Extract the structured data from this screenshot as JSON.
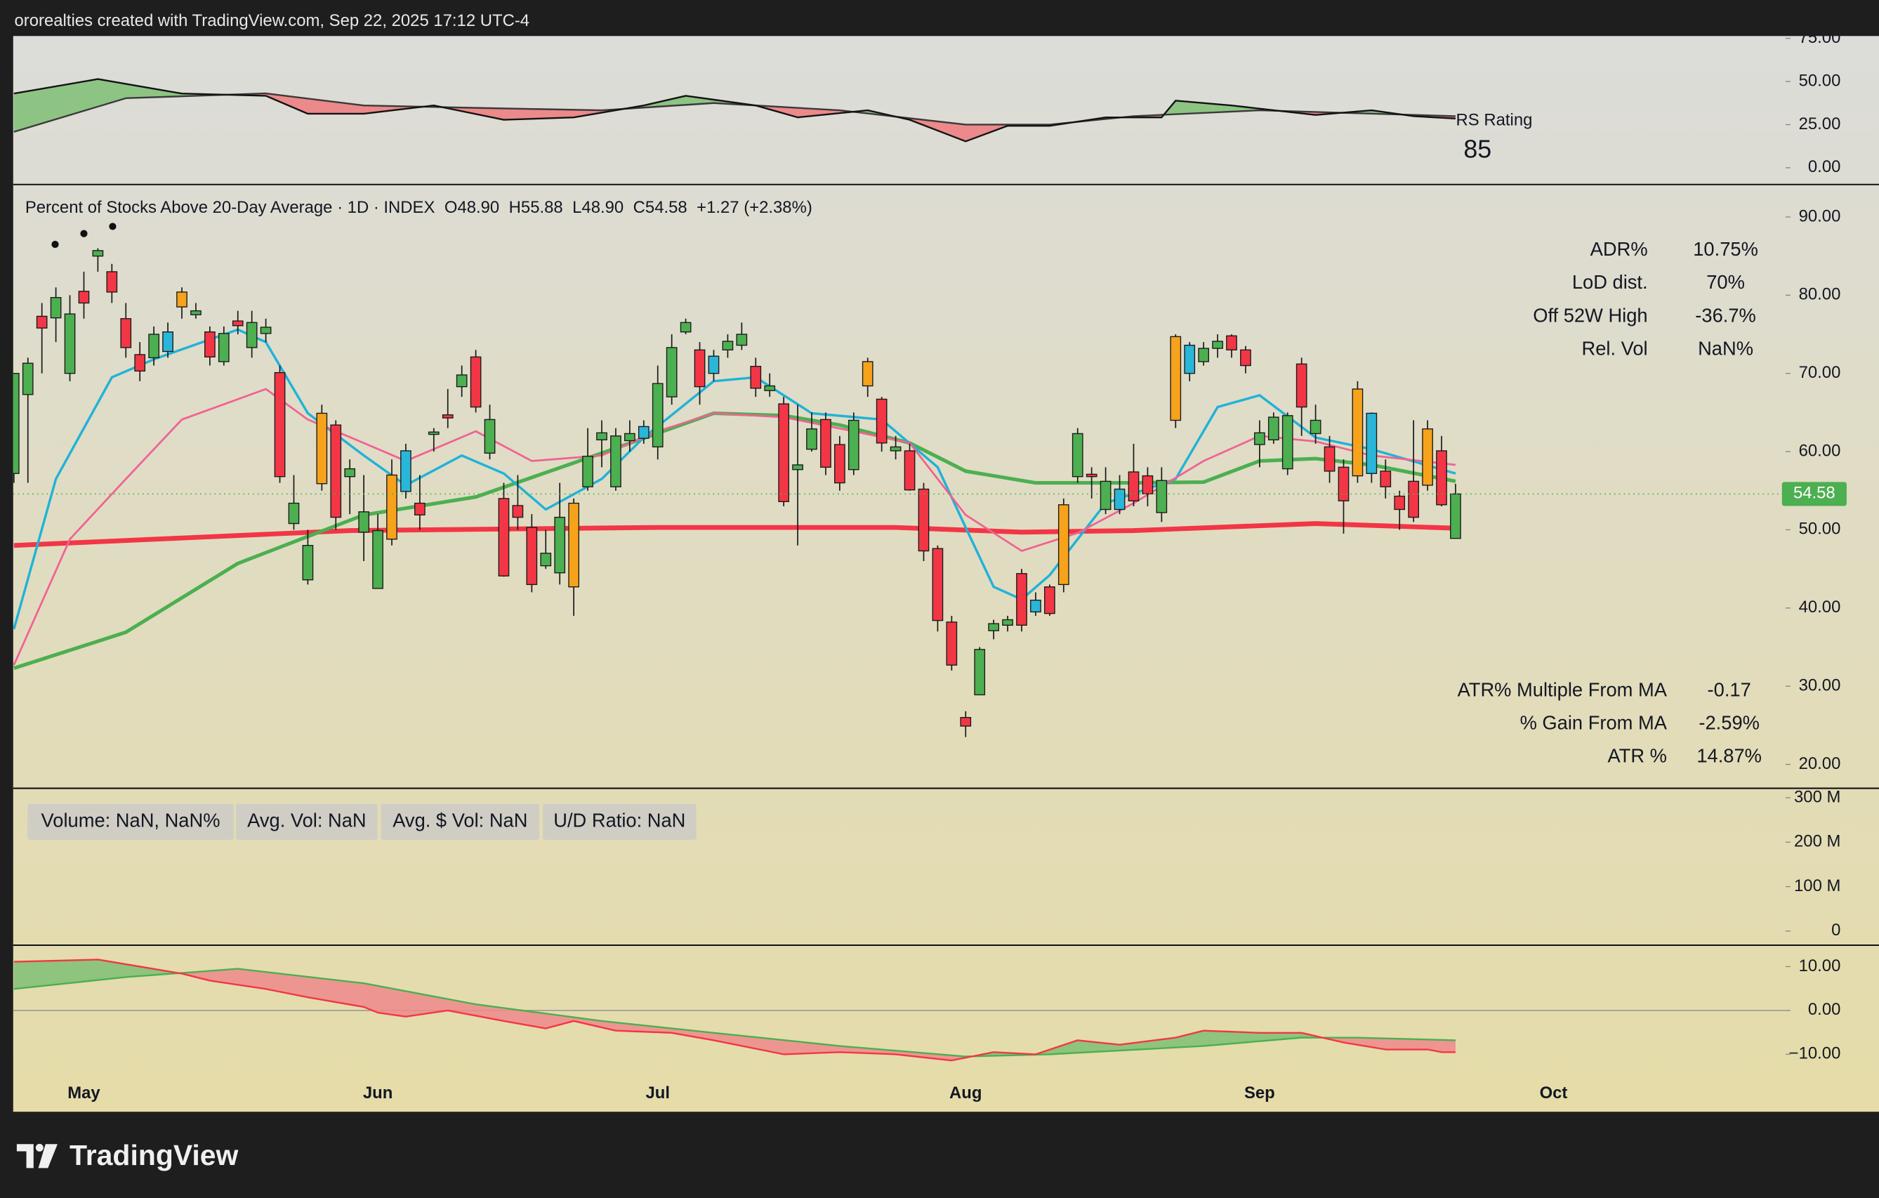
{
  "header": {
    "text": "ororealties created with TradingView.com, Sep 22, 2025 17:12 UTC-4"
  },
  "footer": {
    "brand": "TradingView"
  },
  "chart_data": [
    {
      "type": "area",
      "indicator_label": "RS Rating",
      "rating": 85,
      "ylim": [
        -9,
        75
      ],
      "yticks": [
        {
          "value": 0,
          "label": "0.00"
        },
        {
          "value": 25,
          "label": "25.00"
        },
        {
          "value": 50,
          "label": "50.00"
        },
        {
          "value": 75,
          "label": "75.00"
        }
      ],
      "fill_up": "#7fbf74",
      "fill_down": "#ee7a7d",
      "series": [
        {
          "color": "#131313",
          "x": [
            0,
            6,
            12,
            18,
            21,
            25,
            30,
            35,
            40,
            45,
            48,
            53,
            56,
            61,
            64,
            68,
            71,
            74,
            78,
            82,
            83,
            87,
            93,
            97,
            100,
            103
          ],
          "values": [
            43,
            51.4,
            43,
            41.7,
            31.3,
            31.3,
            36.1,
            27.8,
            29.2,
            36.1,
            41.7,
            36.1,
            29.2,
            33.3,
            27.8,
            15.3,
            24.3,
            24.3,
            29.2,
            29.2,
            38.9,
            36.1,
            30.6,
            33.3,
            29.9,
            28.5
          ]
        },
        {
          "color": "#3a3a3a",
          "x": [
            0,
            8,
            18,
            25,
            33,
            42,
            50,
            59,
            68,
            74,
            80,
            89,
            103
          ],
          "values": [
            20.8,
            40.3,
            43.1,
            36.1,
            34.7,
            33.3,
            37.5,
            33.3,
            25,
            25,
            29.9,
            33.3,
            29.9
          ]
        }
      ]
    },
    {
      "type": "candlestick",
      "title": "Percent of Stocks Above 20-Day Average · 1D · INDEX",
      "status_line": [
        "O48.90",
        "H55.88",
        "L48.90",
        "C54.58",
        "+1.27 (+2.38%)"
      ],
      "categories": [
        null,
        null,
        null,
        null,
        null,
        "May",
        null,
        null,
        null,
        null,
        null,
        null,
        null,
        null,
        null,
        null,
        null,
        null,
        null,
        null,
        null,
        null,
        null,
        null,
        null,
        null,
        "Jun",
        null,
        null,
        null,
        null,
        null,
        null,
        null,
        null,
        null,
        null,
        null,
        null,
        null,
        null,
        null,
        null,
        null,
        null,
        null,
        "Jul",
        null,
        null,
        null,
        null,
        null,
        null,
        null,
        null,
        null,
        null,
        null,
        null,
        null,
        null,
        null,
        null,
        null,
        null,
        null,
        null,
        null,
        "Aug",
        null,
        null,
        null,
        null,
        null,
        null,
        null,
        null,
        null,
        null,
        null,
        null,
        null,
        null,
        null,
        null,
        null,
        null,
        null,
        null,
        "Sep",
        null,
        null,
        null,
        null,
        null,
        null,
        null,
        null,
        null,
        null,
        null,
        null,
        null,
        null,
        null,
        null,
        null,
        null,
        null,
        null,
        "Oct"
      ],
      "open": [
        57.2,
        67.3,
        77.3,
        77.1,
        70,
        80.5,
        85,
        83,
        77,
        72.4,
        72,
        72.8,
        80.4,
        77.5,
        75.3,
        71.5,
        76.7,
        73.3,
        75.1,
        70.1,
        50.8,
        43.6,
        64.9,
        63.4,
        56.8,
        49.7,
        42.5,
        48.8,
        54.9,
        53.4,
        62.2,
        64.7,
        68.3,
        72.1,
        59.8,
        54,
        53.1,
        50.3,
        45.4,
        44.5,
        53.4,
        55.5,
        61.5,
        55.5,
        61.4,
        61.7,
        60.6,
        67,
        75.3,
        73,
        70,
        73,
        73.6,
        70.9,
        67.8,
        66.1,
        57.7,
        60.3,
        64.1,
        60.9,
        57.7,
        71.5,
        66.7,
        60.1,
        60.1,
        55.2,
        47.6,
        38.2,
        26,
        28.9,
        37.1,
        37.8,
        44.4,
        39.5,
        42.7,
        43,
        56.8,
        57.1,
        52.6,
        52.6,
        57.4,
        56.9,
        52.2,
        74.7,
        70,
        71.5,
        73.2,
        74.8,
        73,
        60.9,
        61.5,
        57.8,
        71.2,
        62.3,
        60.6,
        58,
        68,
        57.2,
        57.5,
        54.3,
        56.2,
        55.7,
        60.1,
        48.9,
        null,
        null,
        null,
        null,
        null,
        null,
        null
      ],
      "high": [
        70,
        72,
        79,
        81,
        80,
        83,
        86,
        84,
        79,
        74,
        76,
        76.5,
        81,
        79,
        76,
        76,
        78,
        78,
        77,
        71,
        57,
        50,
        66,
        64,
        59,
        57,
        52,
        59,
        61,
        57,
        63,
        68,
        71,
        73,
        66,
        56,
        57,
        52,
        50,
        56,
        54,
        63,
        64,
        63,
        64,
        64,
        71,
        75,
        77,
        74,
        73,
        75,
        76.5,
        72,
        70,
        67,
        66,
        65,
        65,
        62,
        65,
        72,
        67,
        62,
        61,
        56,
        48,
        39,
        26.8,
        35,
        38.5,
        39,
        45,
        42,
        43,
        54,
        63,
        58,
        58,
        57,
        61,
        58,
        58,
        75,
        74,
        74,
        75,
        75,
        73.5,
        64,
        65,
        65,
        72,
        66,
        62,
        59,
        69,
        65,
        59,
        55,
        64,
        64,
        62,
        55.88,
        null,
        null,
        null,
        null,
        null,
        null,
        null
      ],
      "low": [
        56,
        56,
        70,
        74,
        69,
        77,
        83,
        79,
        72,
        69,
        71,
        72,
        77,
        77,
        71,
        71,
        75,
        72,
        74,
        56,
        50,
        43,
        55,
        50,
        52,
        46,
        42.5,
        48,
        54,
        50,
        60,
        63,
        67,
        65,
        59,
        44,
        50,
        42,
        45,
        43,
        39,
        55,
        58,
        55,
        60,
        61,
        59,
        66,
        75,
        66,
        69,
        72,
        73,
        67,
        67,
        53,
        48,
        60,
        57,
        55,
        57,
        67,
        60,
        59,
        55,
        46,
        37,
        32,
        23.5,
        28.9,
        36,
        37,
        37,
        39,
        39,
        42,
        56,
        54,
        52,
        52,
        53,
        53,
        51,
        63,
        69,
        71,
        72,
        72,
        70,
        58,
        61,
        57,
        62,
        61,
        56,
        49.5,
        56,
        56,
        54,
        50,
        51,
        55,
        53,
        48.9,
        null,
        null,
        null,
        null,
        null,
        null,
        null
      ],
      "close": [
        70,
        71.3,
        75.8,
        79.7,
        77.6,
        79,
        85.7,
        80.4,
        73.3,
        70.3,
        75,
        75.3,
        78.5,
        78,
        72.1,
        75.1,
        76.1,
        76.5,
        75.9,
        56.8,
        53.4,
        48,
        55.9,
        51.6,
        57.8,
        52.3,
        49.9,
        57,
        60.1,
        51.9,
        62.5,
        64.3,
        69.8,
        65.7,
        64.1,
        44.1,
        51.6,
        43,
        47,
        51.6,
        42.7,
        59.4,
        62.4,
        62,
        62.3,
        63.2,
        68.7,
        73.3,
        76.5,
        68.3,
        72.2,
        74.1,
        75,
        68.1,
        68.4,
        53.6,
        58.3,
        62.9,
        58,
        56,
        64,
        68.4,
        61.1,
        60.6,
        55.1,
        47.3,
        38.4,
        32.7,
        24.9,
        34.7,
        38,
        38.5,
        37.8,
        41,
        39.3,
        53.2,
        62.3,
        56.8,
        56.2,
        55.2,
        53.7,
        54.6,
        56.3,
        64,
        73.6,
        73.2,
        74.1,
        73,
        71,
        62.4,
        64.4,
        64.6,
        65.7,
        64,
        57.5,
        53.7,
        56.9,
        64.9,
        55.5,
        52.6,
        51.6,
        62.9,
        53.2,
        54.58,
        null,
        null,
        null,
        null,
        null,
        null,
        null
      ],
      "colors": [
        "#4caf50",
        "#4caf50",
        "#f23645",
        "#4caf50",
        "#4caf50",
        "#f23645",
        "#4caf50",
        "#f23645",
        "#f23645",
        "#f23645",
        "#4caf50",
        "#29b6d9",
        "#f7a21b",
        "#4caf50",
        "#f23645",
        "#4caf50",
        "#f23645",
        "#4caf50",
        "#4caf50",
        "#f23645",
        "#4caf50",
        "#4caf50",
        "#f7a21b",
        "#f23645",
        "#4caf50",
        "#4caf50",
        "#4caf50",
        "#f7a21b",
        "#29b6d9",
        "#f23645",
        "#4caf50",
        "#f23645",
        "#4caf50",
        "#f23645",
        "#4caf50",
        "#f23645",
        "#f23645",
        "#f23645",
        "#4caf50",
        "#4caf50",
        "#f7a21b",
        "#4caf50",
        "#4caf50",
        "#4caf50",
        "#4caf50",
        "#29b6d9",
        "#4caf50",
        "#4caf50",
        "#4caf50",
        "#f23645",
        "#29b6d9",
        "#4caf50",
        "#4caf50",
        "#f23645",
        "#4caf50",
        "#f23645",
        "#4caf50",
        "#4caf50",
        "#f23645",
        "#f23645",
        "#4caf50",
        "#f7a21b",
        "#f23645",
        "#4caf50",
        "#f23645",
        "#f23645",
        "#f23645",
        "#f23645",
        "#f23645",
        "#4caf50",
        "#4caf50",
        "#4caf50",
        "#f23645",
        "#29b6d9",
        "#f23645",
        "#f7a21b",
        "#4caf50",
        "#f23645",
        "#4caf50",
        "#29b6d9",
        "#f23645",
        "#f23645",
        "#4caf50",
        "#f7a21b",
        "#29b6d9",
        "#4caf50",
        "#4caf50",
        "#f23645",
        "#f23645",
        "#4caf50",
        "#4caf50",
        "#4caf50",
        "#f23645",
        "#4caf50",
        "#f23645",
        "#f23645",
        "#f7a21b",
        "#29b6d9",
        "#f23645",
        "#f23645",
        "#f23645",
        "#f7a21b",
        "#f23645",
        "#4caf50",
        null,
        null,
        null,
        null,
        null,
        null,
        null
      ],
      "last_price_color": "#4caf50",
      "series": [
        {
          "color": "#f23645",
          "width": 4,
          "x": [
            0,
            24,
            46,
            63,
            72,
            80,
            93,
            103
          ],
          "values": [
            48,
            49.9,
            50.3,
            50.3,
            49.7,
            49.9,
            50.8,
            50.2
          ]
        },
        {
          "color": "#4caf50",
          "width": 3,
          "x": [
            0,
            8,
            16,
            25,
            33,
            42,
            50,
            55,
            59,
            64,
            68,
            73,
            80,
            85,
            89,
            93,
            97,
            103
          ],
          "values": [
            32.3,
            36.9,
            45.7,
            51.9,
            54.2,
            59.8,
            64.9,
            64.6,
            63.4,
            61.1,
            57.5,
            56,
            56,
            56.1,
            58.8,
            59.1,
            58.3,
            56.2
          ]
        },
        {
          "color": "#1fb3d8",
          "width": 2,
          "x": [
            0,
            3,
            7,
            10,
            16,
            18,
            21,
            25,
            28,
            32,
            35,
            38,
            42,
            45,
            50,
            53,
            57,
            62,
            66,
            68,
            70,
            72,
            74,
            78,
            83,
            86,
            89,
            93,
            97,
            103
          ],
          "values": [
            37.3,
            56.5,
            69.5,
            71.8,
            75.6,
            74,
            64.9,
            59.5,
            55.7,
            59.5,
            57.2,
            52.6,
            56.5,
            61.8,
            69,
            69.5,
            64.9,
            64.1,
            58,
            50.3,
            42.7,
            41.1,
            44.2,
            53.4,
            56.5,
            65.7,
            67.2,
            61.8,
            60.3,
            57.2
          ]
        },
        {
          "color": "#f06292",
          "width": 1.6,
          "x": [
            0,
            4,
            8,
            12,
            18,
            21,
            25,
            28,
            33,
            37,
            42,
            46,
            50,
            55,
            60,
            64,
            68,
            72,
            76,
            80,
            85,
            89,
            93,
            97,
            103
          ],
          "values": [
            32.7,
            48.8,
            56.5,
            64.1,
            68,
            64.1,
            61.1,
            58.8,
            62.6,
            58.8,
            59.5,
            62.6,
            64.9,
            64.4,
            62.6,
            61.1,
            51.9,
            47.3,
            49.6,
            53.4,
            58.8,
            62,
            61.3,
            59.5,
            58.3
          ]
        }
      ],
      "ylim": [
        17.1,
        94
      ],
      "yticks": [
        {
          "value": 20,
          "label": "20.00"
        },
        {
          "value": 30,
          "label": "30.00"
        },
        {
          "value": 40,
          "label": "40.00"
        },
        {
          "value": 50,
          "label": "50.00"
        },
        {
          "value": 60,
          "label": "60.00"
        },
        {
          "value": 70,
          "label": "70.00"
        },
        {
          "value": 80,
          "label": "80.00"
        },
        {
          "value": 90,
          "label": "90.00"
        }
      ],
      "stats": [
        {
          "label": "ADR%",
          "value": "10.75%"
        },
        {
          "label": "LoD dist.",
          "value": "70%"
        },
        {
          "label": "Off 52W High",
          "value": "-36.7%"
        },
        {
          "label": "Rel. Vol",
          "value": "NaN%"
        }
      ],
      "stats_bottom": [
        {
          "label": "ATR% Multiple From MA",
          "value": "-0.17"
        },
        {
          "label": "% Gain From MA",
          "value": "-2.59%"
        },
        {
          "label": "ATR %",
          "value": "14.87%"
        }
      ]
    },
    {
      "type": "bar",
      "info_boxes": [
        "Volume: NaN, NaN%",
        "Avg. Vol: NaN",
        "Avg. $ Vol: NaN",
        "U/D Ratio: NaN"
      ],
      "ylim": [
        -29200000,
        318600000
      ],
      "yticks": [
        0,
        {
          "value": 100000000,
          "label": "100 M"
        },
        {
          "value": 200000000,
          "label": "200 M"
        },
        {
          "value": 300000000,
          "label": "300 M"
        }
      ]
    },
    {
      "type": "area",
      "zero_line": true,
      "ylim": [
        -14.9,
        14.6
      ],
      "yticks": [
        {
          "value": -10,
          "label": "−10.00"
        },
        {
          "value": 0,
          "label": "0.00"
        },
        {
          "value": 10,
          "label": "10.00"
        }
      ],
      "fill_up": "#7fbf74",
      "fill_down": "#ee8a8c",
      "series": [
        {
          "color": "#f23645",
          "x": [
            0,
            6,
            9,
            12,
            14,
            18,
            21,
            25,
            26,
            28,
            31,
            35,
            38,
            40,
            43,
            47,
            50,
            55,
            59,
            63,
            67,
            70,
            73,
            76,
            79,
            83,
            85,
            89,
            92,
            95,
            98,
            101,
            102,
            103
          ],
          "values": [
            11.1,
            11.6,
            10,
            8.4,
            6.8,
            4.9,
            3,
            0.8,
            -0.5,
            -1.4,
            0,
            -2.4,
            -4.1,
            -2.4,
            -4.6,
            -5.1,
            -6.8,
            -10,
            -9.5,
            -10,
            -11.4,
            -9.5,
            -10,
            -6.8,
            -7.8,
            -6.2,
            -4.6,
            -5.1,
            -5.1,
            -7.3,
            -8.9,
            -8.9,
            -9.5,
            -9.5
          ]
        },
        {
          "color": "#4caf50",
          "x": [
            0,
            8,
            16,
            25,
            33,
            42,
            50,
            59,
            68,
            74,
            85,
            92,
            96,
            103
          ],
          "values": [
            4.9,
            7.6,
            9.5,
            6.2,
            1.4,
            -2.4,
            -5.1,
            -8.1,
            -10.5,
            -10,
            -8.1,
            -6.2,
            -6.2,
            -6.8
          ]
        }
      ]
    }
  ]
}
